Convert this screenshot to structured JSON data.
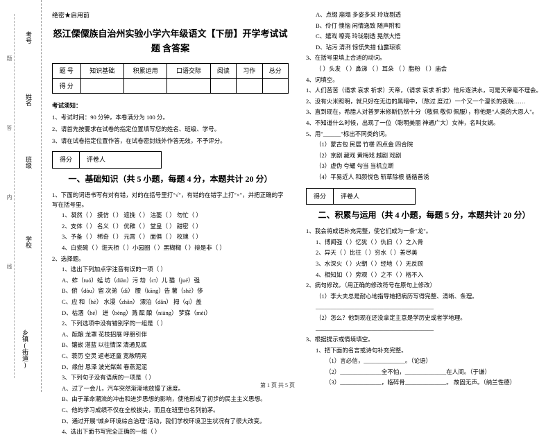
{
  "margin": {
    "labels": [
      "考号",
      "姓名",
      "班级",
      "学校",
      "乡镇(街道)"
    ],
    "vtexts": [
      "题",
      "答",
      "内",
      "线"
    ]
  },
  "header_mark": "绝密★启用前",
  "title": "怒江傈僳族自治州实验小学六年级语文【下册】开学考试试题 含答案",
  "score_table": {
    "headers": [
      "题 号",
      "知识基础",
      "积累运用",
      "口语交际",
      "阅读",
      "习作",
      "总分"
    ],
    "row2": "得 分"
  },
  "notice": {
    "title": "考试须知：",
    "items": [
      "1、考试时间：90 分钟，本卷满分为 100 分。",
      "2、请首先按要求在试卷的指定位置填写您的姓名、班级、学号。",
      "3、请在试卷指定位置作答，在试卷密封线外作答无效，不予评分。"
    ]
  },
  "score_box": {
    "l": "得分",
    "r": "评卷人"
  },
  "sec1": {
    "title": "一、基础知识（共 5 小题，每题 4 分，本题共计 20 分）",
    "q1": "1、下面的词语书写有对有错，对的在括号里打\"√\"，有错的在错字上打\"×\"，并把正确的字写在括号里。",
    "q1_lines": [
      "1、凝然（  ） 摸仿（  ） 遮挽（  ） 沽萎（  ） 勿忙（  ）",
      "2、支体（  ） 名义（  ） 优稚（  ） 堂皇（  ） 甜密（  ）",
      "3、予备（  ） 稀奇（  ） 元霄（  ） 面俱（  ） 枚瑰（  ）",
      "4、白瓷碗（  ）诳天桥（  ）小园圈（  ）黑糊糊（  ）辩是非（  ）"
    ],
    "q2": "2、选择题。",
    "q2_lines": [
      "1、选出下列加点字注音有误的一项（  ）",
      "A、蚱（tuó）蜢    坊（diàn）污    劫（cī）儿         猫（jué）强",
      "B、俯（dòu）留    次弟（dì）      腰（kāng）告      薯（shè）侈",
      "C、应 和（hè）    水漫（zhǎn）   漂泊（dǎn）        拇（qí）盖",
      "D、枯涸（hé）    迸（bèng）溅    酝 酿（niàng）    梦寐（mèi）",
      "2、下列选项中没有错别字的一组是（  ）",
      "A、酝酿   龙罩   花枝招展   呼朋引伴",
      "B、镶嵌   湛蓝   以往情深   清通见底",
      "C、蓑历   空灵   返老还童   宽敞明亮",
      "D、缘份   恩泽   波光粼粼   春燕泥泥",
      "3、下列句子没有语病的一项是（  ）",
      "A、过了一会儿，汽车突然渐渐地放慢了速度。",
      "B、由于革命潮流的冲击和进步思想的影响，使他形成了初步的民主主义思想。",
      "C、他的学习成绩不仅在全校拔尖，而且在班里也名列前茅。",
      "D、通过开展\"城乡环境综合治理\"活动，我们学校环境卫生状况有了很大改变。",
      "4、选出下面书写完全正确的一组（  ）"
    ]
  },
  "col2": {
    "top_lines": [
      "A、点缀   崩塌   多姿多采   玲珑剔透",
      "B、伶仃   懊恼   闲情逸致   随声附和",
      "C、嬉戏   嘹亮   玲珑剔透   晃然大悟",
      "D、玷污   清洌   惊慌失措   仙露琼浆",
      "3、在括号里填上合适的动词。",
      "  （  ）头发   （  ）鼻涕   （  ）耳朵   （  ）脂粉   （  ）庙会",
      "4、词填空。",
      "1、人们苦苦（请求  哀求  祈求）天帝，（请求  哀求  祈求）他斥逐洪水，可是天帝毫不理会。",
      "2、没有火米照明，就只好在无边的黑暗中，（熬过  度过）一个又一个漫长的夜晚……",
      "3、直到现在，希腊人对普罗米修斯仍然十分（敬佩  敬仰  佩服），称他是\"人类的大恩人\"。",
      "4、不知道什么时候，出现了一位（聪明美丽  神通广大）女神，名叫女娲。",
      "5、用\"______\"标出不同类的词。",
      "  （1）蒙古包   民居    竹楼      四点金   四合院",
      "  （2）京剧    藏戏    黄梅戏    越剧     戏剧",
      "  （3）虚伪    夸耀    勾当      当机立断",
      "  （4）平易近人 和颜悦色  斩草除根  循循善诱"
    ],
    "sec2_title": "二、积累与运用（共 4 小题，每题 5 分，本题共计 20 分）",
    "q1": "1、我会将成语补充完整，使它们成为一条\"龙\"。",
    "q1_lines": [
      "1、博闻强（  ）忆犹（  ）仇旧（  ）之入骨",
      "2、异天（  ）比往（  ）穷水（  ）善尽美",
      "3、水深火（  ）火朝（  ）经地（  ）无反顾",
      "4、相知如（  ）旁观（  ）之不（  ）格不入"
    ],
    "q2": "2、病句修改。（用正确的修改符号在原句上修改）",
    "q2_lines": [
      "（1）李大夫总是耐心地指导她把病历写得完整、清晰、条理。",
      " ________________________________________",
      "（2）怎么？他到现在还没拿定主意是学历史或者学地理。",
      " ________________________________________"
    ],
    "q3": "3、根据提示或情境填空。",
    "q3_lines": [
      "1、把下面的名言或诗句补充完整。",
      "  （1）言必信，______________。（论语）",
      "  （2）______________全不怕，______________在人间。（于谦）",
      "  （3）______________，临碎骨______________。 故固无声。（纳兰性德）"
    ]
  },
  "footer": "第 1 页 共 5 页"
}
